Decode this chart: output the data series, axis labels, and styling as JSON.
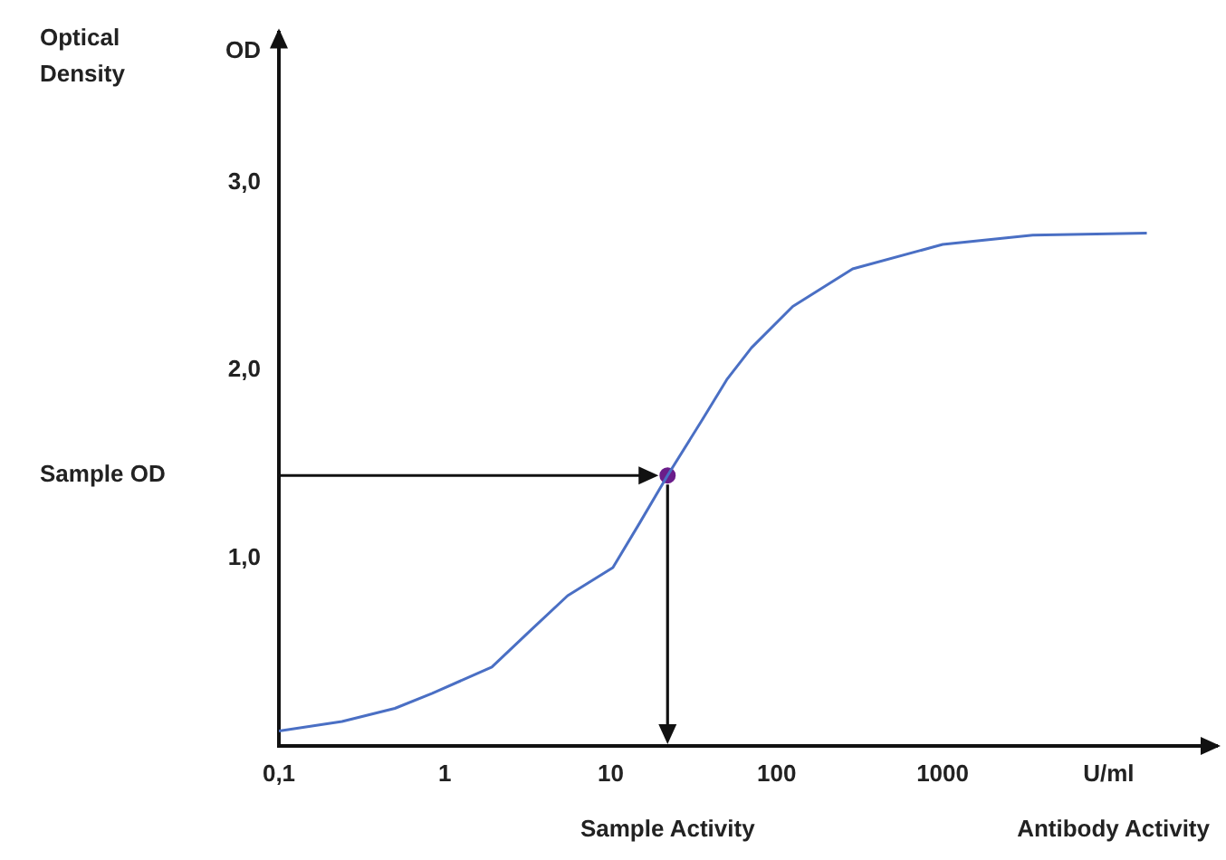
{
  "chart_data": {
    "type": "line",
    "ylabel": "Optical Density",
    "xlabel": "Antibody Activity",
    "log": "x",
    "xlim": [
      0.1,
      45000
    ],
    "ylim": [
      0,
      3.8
    ],
    "xticks": [
      {
        "value": 0.1,
        "label": "0,1"
      },
      1,
      10,
      100,
      1000,
      {
        "value": 10000,
        "label": "U/ml"
      }
    ],
    "yticks": [
      {
        "value": 1,
        "label": "1,0"
      },
      {
        "value": 2,
        "label": "2,0"
      },
      {
        "value": 3,
        "label": "3,0"
      },
      {
        "value": 3.7,
        "label": "OD"
      }
    ],
    "grid": false,
    "legend": false,
    "series": [
      {
        "color": "#4a6fc4",
        "marker": "none",
        "line_style": "solid",
        "x": [
          0.1,
          0.24,
          0.5,
          0.84,
          1.92,
          3.33,
          5.5,
          10.3,
          15,
          22,
          35.8,
          50,
          70.5,
          125,
          287,
          1000,
          3490,
          17000
        ],
        "values": [
          0.08,
          0.13,
          0.2,
          0.28,
          0.42,
          0.62,
          0.8,
          0.95,
          1.19,
          1.44,
          1.74,
          1.95,
          2.12,
          2.34,
          2.54,
          2.67,
          2.72,
          2.73
        ]
      },
      {
        "type": "scatter",
        "color": "#6b1d8a",
        "marker": "circle",
        "x": [
          22
        ],
        "values": [
          1.44
        ]
      }
    ],
    "annotations": [
      "Sample OD",
      "Sample Activity"
    ]
  }
}
